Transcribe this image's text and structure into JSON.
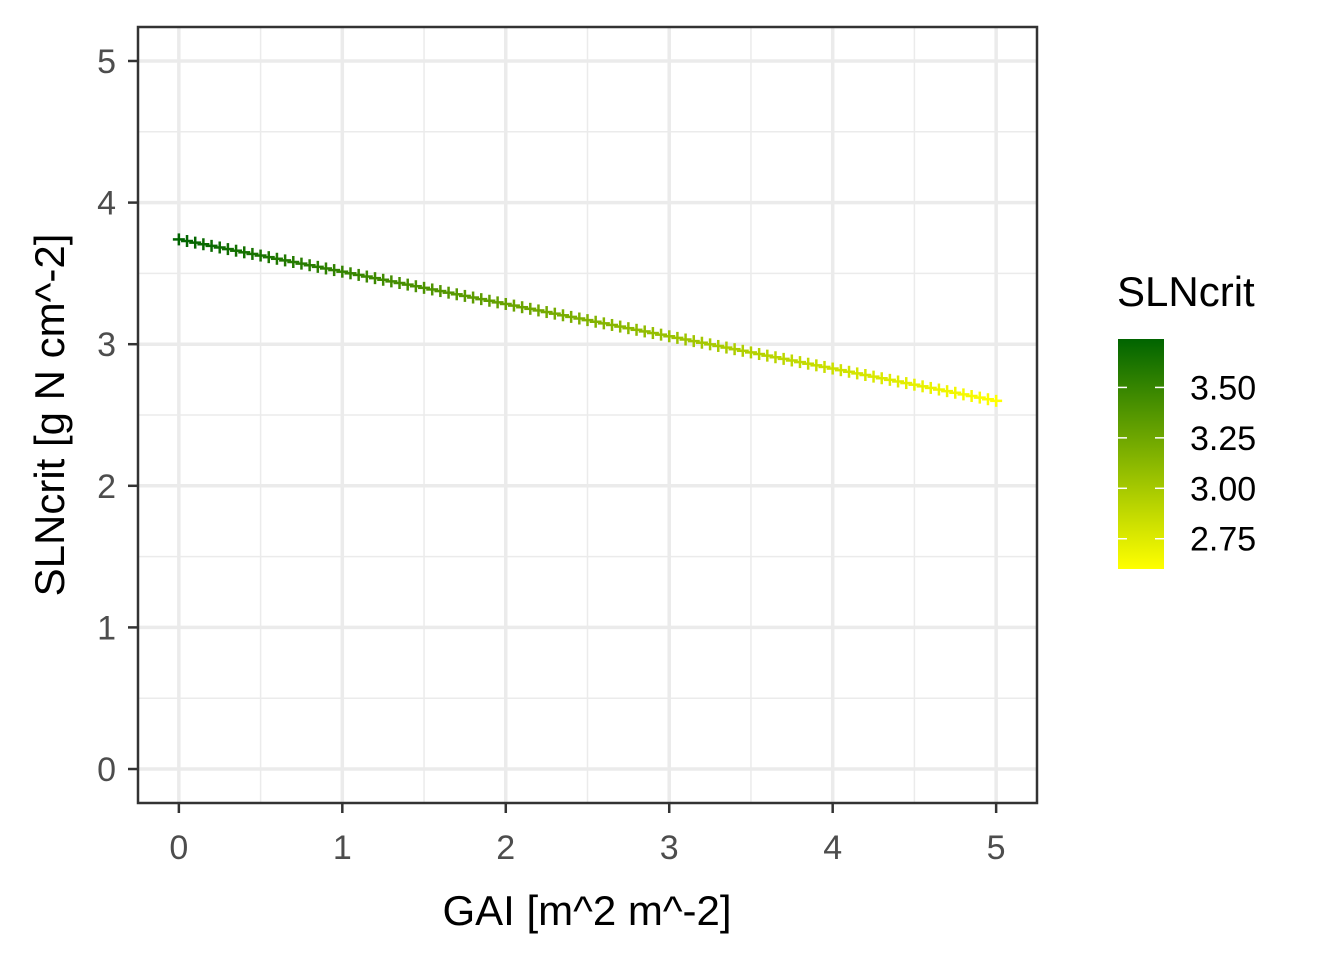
{
  "chart_data": {
    "type": "scatter",
    "title": "",
    "xlabel": "GAI [m^2 m^-2]",
    "ylabel": "SLNcrit [g N cm^-2]",
    "xlim": [
      -0.25,
      5.25
    ],
    "ylim": [
      -0.24,
      5.24
    ],
    "x_ticks": [
      "0",
      "1",
      "2",
      "3",
      "4",
      "5"
    ],
    "y_ticks": [
      "0",
      "1",
      "2",
      "3",
      "4",
      "5"
    ],
    "grid": true,
    "series": [
      {
        "x_start": 0,
        "x_end": 5,
        "x_step": 0.05,
        "y_at_x_start": 3.74,
        "y_at_x_end": 2.6,
        "marker": "+"
      }
    ],
    "legend": {
      "title": "SLNcrit",
      "placement": "right",
      "type": "colorbar",
      "range": [
        2.6,
        3.74
      ],
      "low_color": "#ffff00",
      "high_color": "#006400",
      "labels": [
        "3.50",
        "3.25",
        "3.00",
        "2.75"
      ],
      "values": [
        3.5,
        3.25,
        3.0,
        2.75
      ]
    }
  }
}
